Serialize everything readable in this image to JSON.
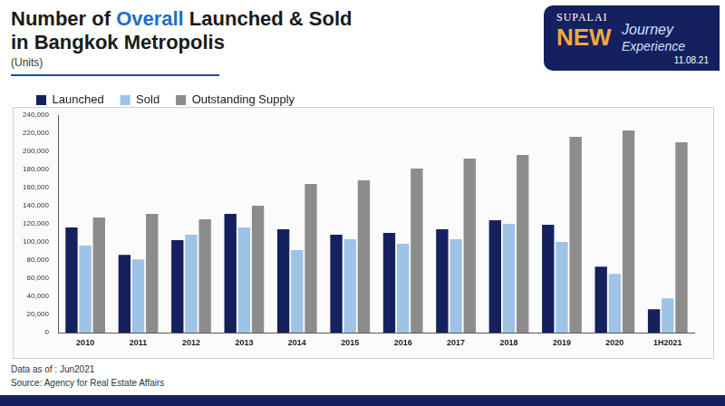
{
  "chart_data": {
    "type": "bar",
    "title": [
      "Number of Overall Launched & Sold",
      "in Bangkok Metropolis"
    ],
    "title_highlight": "Overall",
    "subtitle": "(Units)",
    "categories": [
      "2010",
      "2011",
      "2012",
      "2013",
      "2014",
      "2015",
      "2016",
      "2017",
      "2018",
      "2019",
      "2020",
      "1H2021"
    ],
    "series": [
      {
        "name": "Launched",
        "color": "#14215e",
        "values": [
          116000,
          86000,
          102000,
          131000,
          114000,
          108000,
          110000,
          114000,
          124000,
          119000,
          73000,
          26000
        ]
      },
      {
        "name": "Sold",
        "color": "#9dc3e6",
        "values": [
          96000,
          81000,
          108000,
          116000,
          91000,
          103000,
          98000,
          103000,
          120000,
          100000,
          65000,
          38000
        ]
      },
      {
        "name": "Outstanding Supply",
        "color": "#8c8c8c",
        "values": [
          127000,
          131000,
          125000,
          140000,
          164000,
          168000,
          181000,
          192000,
          196000,
          216000,
          223000,
          210000
        ]
      }
    ],
    "ylim": [
      0,
      240000
    ],
    "yticks": [
      0,
      {
        "value": 20000,
        "label": "20,000"
      },
      {
        "value": 40000,
        "label": "40,000"
      },
      {
        "value": 60000,
        "label": "60,000"
      },
      {
        "value": 80000,
        "label": "80,000"
      },
      {
        "value": 100000,
        "label": "100,000"
      },
      {
        "value": 120000,
        "label": "120,000"
      },
      {
        "value": 140000,
        "label": "140,000"
      },
      {
        "value": 160000,
        "label": "160,000"
      },
      {
        "value": 180000,
        "label": "180,000"
      },
      {
        "value": 200000,
        "label": "200,000"
      },
      {
        "value": 220000,
        "label": "220,000"
      },
      {
        "value": 240000,
        "label": "240,000"
      }
    ],
    "grid": false,
    "legend": "top-left"
  },
  "logo": {
    "brand": "SUPALAI",
    "new": "NEW",
    "journey": "Journey",
    "experience": "Experience",
    "date": "11.08.21"
  },
  "footer": {
    "data_as_of": "Data as of : Jun2021",
    "source": "Source: Agency for Real Estate Affairs"
  }
}
